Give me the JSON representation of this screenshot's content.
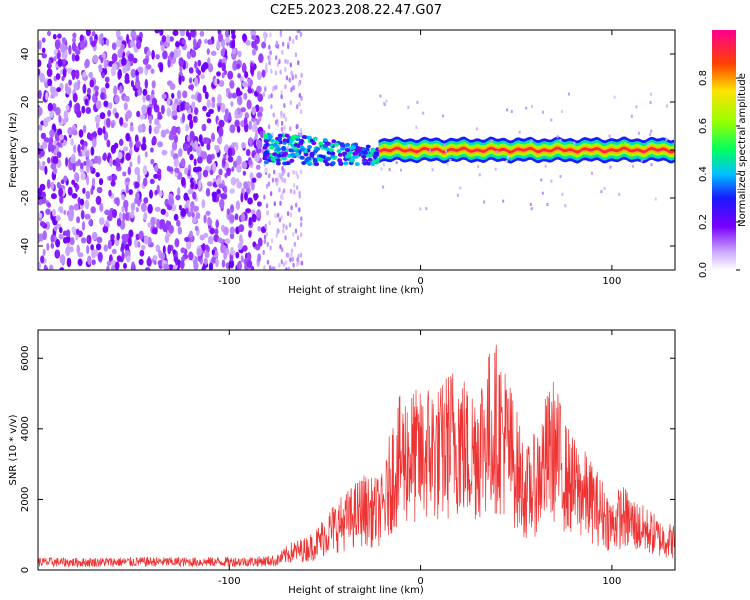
{
  "title": "C2E5.2023.208.22.47.G07",
  "chart_data": [
    {
      "type": "heatmap",
      "xlabel": "Height of straight line (km)",
      "ylabel": "Frequency (Hz)",
      "xlim": [
        -200,
        133
      ],
      "ylim": [
        -50,
        50
      ],
      "xticks": [
        -100,
        0,
        100
      ],
      "yticks": [
        -40,
        -20,
        0,
        20,
        40
      ],
      "colorbar": {
        "label": "Normalized spectral amplitude",
        "range": [
          0,
          1
        ],
        "ticks": [
          "0.0",
          "0.2",
          "0.4",
          "0.6",
          "0.8"
        ]
      },
      "features": [
        {
          "description": "diffuse low-amplitude noise",
          "x_range": [
            -200,
            -82
          ],
          "f_range": [
            -50,
            50
          ],
          "amplitude": 0.1
        },
        {
          "description": "patchy noise",
          "x_range": [
            -82,
            -62
          ],
          "f_range": [
            -50,
            50
          ],
          "amplitude": 0.05
        },
        {
          "description": "signal band onset",
          "x_range": [
            -82,
            -22
          ],
          "f_range": [
            -6,
            8
          ],
          "amplitude": 0.35
        },
        {
          "description": "narrow carrier line",
          "x_range": [
            -22,
            133
          ],
          "f_center": 0,
          "f_halfwidth": 3,
          "amplitude": 0.95
        }
      ]
    },
    {
      "type": "line",
      "xlabel": "Height of straight line (km)",
      "ylabel": "SNR (10 * v/v)",
      "xlim": [
        -200,
        133
      ],
      "ylim": [
        0,
        6800
      ],
      "xticks": [
        -100,
        0,
        100
      ],
      "yticks": [
        0,
        2000,
        4000,
        6000
      ],
      "color": "#ee3333",
      "series": [
        {
          "x": [
            -200,
            -180,
            -160,
            -140,
            -120,
            -100,
            -85,
            -75,
            -68,
            -60,
            -55,
            -50,
            -45,
            -40,
            -35,
            -30,
            -25,
            -20,
            -18,
            -15,
            -10,
            -5,
            0,
            5,
            10,
            15,
            20,
            25,
            30,
            35,
            40,
            45,
            50,
            55,
            60,
            65,
            70,
            75,
            80,
            85,
            90,
            95,
            100,
            105,
            110,
            115,
            120,
            125,
            133
          ],
          "y": [
            250,
            240,
            250,
            260,
            250,
            260,
            270,
            300,
            550,
            650,
            800,
            1100,
            1350,
            1500,
            1700,
            1900,
            1800,
            1900,
            2200,
            3000,
            3500,
            3600,
            3500,
            3800,
            3600,
            4000,
            4200,
            3600,
            3900,
            4300,
            4500,
            4000,
            3200,
            2400,
            2700,
            3400,
            3800,
            3000,
            2600,
            2400,
            2100,
            1800,
            1400,
            1700,
            1500,
            1300,
            1200,
            1000,
            900
          ]
        }
      ]
    }
  ]
}
